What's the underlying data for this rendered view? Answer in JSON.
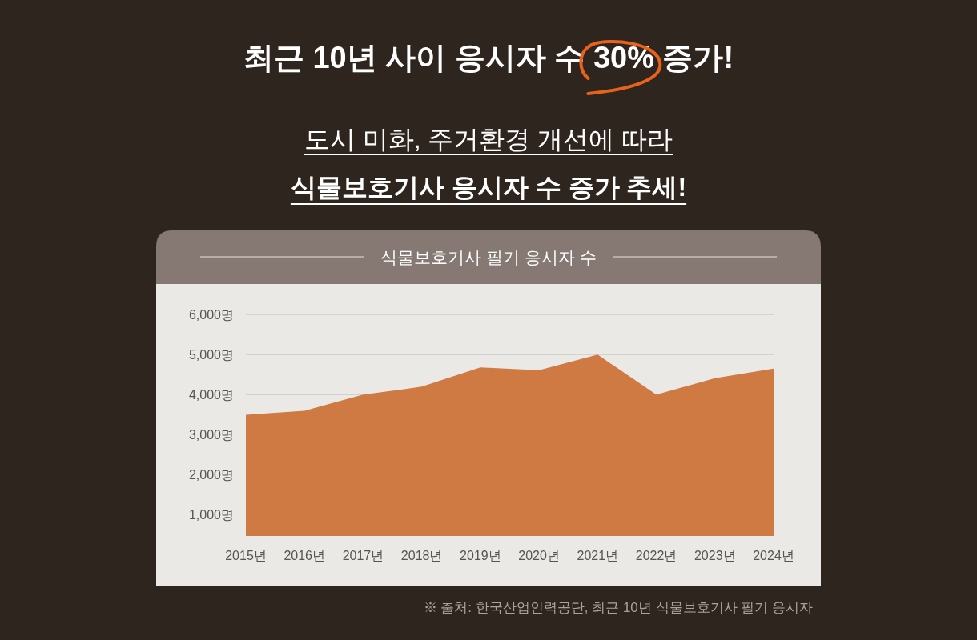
{
  "chart_data": {
    "type": "area",
    "title": "최근 10년 사이 응시자 수 30% 증가!",
    "subtitle": "도시 미화, 주거환경 개선에 따라",
    "annotations": [
      "식물보호기사 응시자 수 증가 추세!",
      "식물보호기사 필기 응시자 수",
      "※ 출처: 한국산업인력공단, 최근 10년 식물보호기사 필기  응시자"
    ],
    "categories": [
      "2015년",
      "2016년",
      "2017년",
      "2018년",
      "2019년",
      "2020년",
      "2021년",
      "2022년",
      "2023년",
      "2024년"
    ],
    "series": [
      {
        "color": "#cf7a42",
        "values": [
          3500,
          3600,
          4000,
          4200,
          4680,
          4610,
          5000,
          4000,
          4410,
          4650
        ]
      }
    ],
    "ylim": [
      470,
      6000
    ],
    "yticks": [
      {
        "value": 1000,
        "label": "1,000명"
      },
      {
        "value": 2000,
        "label": "2,000명"
      },
      {
        "value": 3000,
        "label": "3,000명"
      },
      {
        "value": 4000,
        "label": "4,000명"
      },
      {
        "value": 5000,
        "label": "5,000명"
      },
      {
        "value": 6000,
        "label": "6,000명"
      }
    ],
    "grid": "y"
  }
}
